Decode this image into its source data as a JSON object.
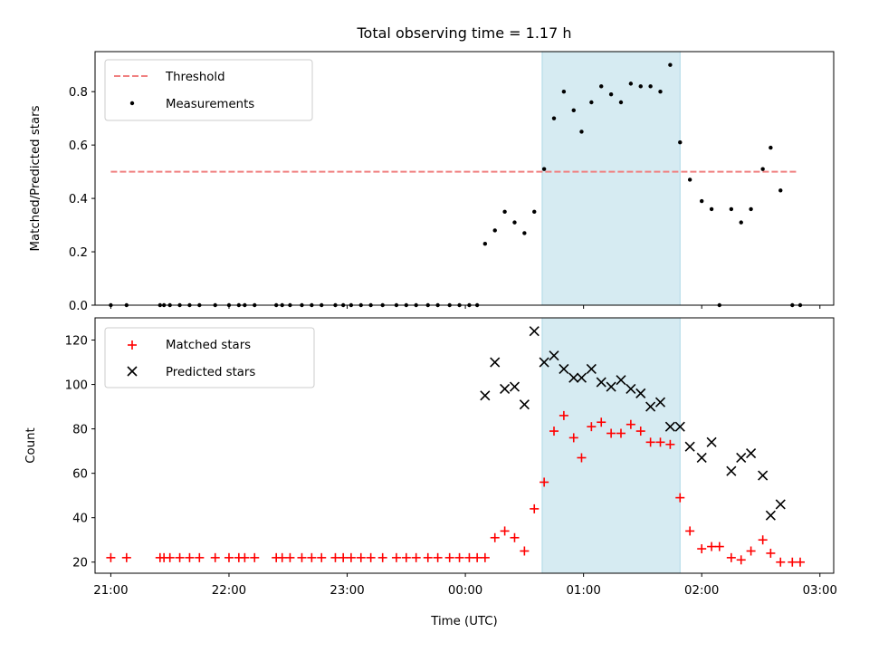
{
  "title": "Total observing time = 1.17 h",
  "shaded_region_color": "#add8e6",
  "chart_data": [
    {
      "type": "scatter",
      "panel": "top",
      "ylabel": "Matched/Predicted stars",
      "ylim": [
        0,
        0.95
      ],
      "yticks": [
        0.0,
        0.2,
        0.4,
        0.6,
        0.8
      ],
      "ytick_labels": [
        "0.0",
        "0.2",
        "0.4",
        "0.6",
        "0.8"
      ],
      "xlim": [
        "20:52",
        "03:07"
      ],
      "legend_position": "upper-left",
      "shaded_region": [
        "00:39",
        "01:49"
      ],
      "threshold": {
        "name": "Threshold",
        "value": 0.5,
        "x_range": [
          "21:00",
          "02:48"
        ],
        "color": "#f08080",
        "style": "dashed"
      },
      "series": [
        {
          "name": "Measurements",
          "marker": "dot",
          "color": "#000000",
          "points": [
            [
              "21:00",
              0.0
            ],
            [
              "21:08",
              0.0
            ],
            [
              "21:25",
              0.0
            ],
            [
              "21:27",
              0.0
            ],
            [
              "21:30",
              0.0
            ],
            [
              "21:35",
              0.0
            ],
            [
              "21:40",
              0.0
            ],
            [
              "21:45",
              0.0
            ],
            [
              "21:53",
              0.0
            ],
            [
              "22:00",
              0.0
            ],
            [
              "22:05",
              0.0
            ],
            [
              "22:08",
              0.0
            ],
            [
              "22:13",
              0.0
            ],
            [
              "22:24",
              0.0
            ],
            [
              "22:27",
              0.0
            ],
            [
              "22:31",
              0.0
            ],
            [
              "22:37",
              0.0
            ],
            [
              "22:42",
              0.0
            ],
            [
              "22:47",
              0.0
            ],
            [
              "22:54",
              0.0
            ],
            [
              "22:58",
              0.0
            ],
            [
              "23:02",
              0.0
            ],
            [
              "23:07",
              0.0
            ],
            [
              "23:12",
              0.0
            ],
            [
              "23:18",
              0.0
            ],
            [
              "23:25",
              0.0
            ],
            [
              "23:30",
              0.0
            ],
            [
              "23:35",
              0.0
            ],
            [
              "23:41",
              0.0
            ],
            [
              "23:46",
              0.0
            ],
            [
              "23:52",
              0.0
            ],
            [
              "23:57",
              0.0
            ],
            [
              "00:02",
              0.0
            ],
            [
              "00:06",
              0.0
            ],
            [
              "00:10",
              0.23
            ],
            [
              "00:15",
              0.28
            ],
            [
              "00:20",
              0.35
            ],
            [
              "00:25",
              0.31
            ],
            [
              "00:30",
              0.27
            ],
            [
              "00:35",
              0.35
            ],
            [
              "00:40",
              0.51
            ],
            [
              "00:45",
              0.7
            ],
            [
              "00:50",
              0.8
            ],
            [
              "00:55",
              0.73
            ],
            [
              "00:59",
              0.65
            ],
            [
              "01:04",
              0.76
            ],
            [
              "01:09",
              0.82
            ],
            [
              "01:14",
              0.79
            ],
            [
              "01:19",
              0.76
            ],
            [
              "01:24",
              0.83
            ],
            [
              "01:29",
              0.82
            ],
            [
              "01:34",
              0.82
            ],
            [
              "01:39",
              0.8
            ],
            [
              "01:44",
              0.9
            ],
            [
              "01:49",
              0.61
            ],
            [
              "01:54",
              0.47
            ],
            [
              "02:00",
              0.39
            ],
            [
              "02:05",
              0.36
            ],
            [
              "02:09",
              0.0
            ],
            [
              "02:15",
              0.36
            ],
            [
              "02:20",
              0.31
            ],
            [
              "02:25",
              0.36
            ],
            [
              "02:31",
              0.51
            ],
            [
              "02:35",
              0.59
            ],
            [
              "02:40",
              0.43
            ],
            [
              "02:46",
              0.0
            ],
            [
              "02:50",
              0.0
            ]
          ]
        }
      ]
    },
    {
      "type": "scatter",
      "panel": "bottom",
      "xlabel": "Time (UTC)",
      "ylabel": "Count",
      "ylim": [
        15,
        130
      ],
      "yticks": [
        20,
        40,
        60,
        80,
        100,
        120
      ],
      "ytick_labels": [
        "20",
        "40",
        "60",
        "80",
        "100",
        "120"
      ],
      "xlim": [
        "20:52",
        "03:07"
      ],
      "xticks": [
        "21:00",
        "22:00",
        "23:00",
        "00:00",
        "01:00",
        "02:00",
        "03:00"
      ],
      "legend_position": "upper-left",
      "shaded_region": [
        "00:39",
        "01:49"
      ],
      "series": [
        {
          "name": "Matched stars",
          "marker": "plus",
          "color": "#ff0000",
          "points": [
            [
              "21:00",
              22
            ],
            [
              "21:08",
              22
            ],
            [
              "21:25",
              22
            ],
            [
              "21:27",
              22
            ],
            [
              "21:30",
              22
            ],
            [
              "21:35",
              22
            ],
            [
              "21:40",
              22
            ],
            [
              "21:45",
              22
            ],
            [
              "21:53",
              22
            ],
            [
              "22:00",
              22
            ],
            [
              "22:05",
              22
            ],
            [
              "22:08",
              22
            ],
            [
              "22:13",
              22
            ],
            [
              "22:24",
              22
            ],
            [
              "22:27",
              22
            ],
            [
              "22:31",
              22
            ],
            [
              "22:37",
              22
            ],
            [
              "22:42",
              22
            ],
            [
              "22:47",
              22
            ],
            [
              "22:54",
              22
            ],
            [
              "22:58",
              22
            ],
            [
              "23:02",
              22
            ],
            [
              "23:07",
              22
            ],
            [
              "23:12",
              22
            ],
            [
              "23:18",
              22
            ],
            [
              "23:25",
              22
            ],
            [
              "23:30",
              22
            ],
            [
              "23:35",
              22
            ],
            [
              "23:41",
              22
            ],
            [
              "23:46",
              22
            ],
            [
              "23:52",
              22
            ],
            [
              "23:57",
              22
            ],
            [
              "00:02",
              22
            ],
            [
              "00:06",
              22
            ],
            [
              "00:10",
              22
            ],
            [
              "00:15",
              31
            ],
            [
              "00:20",
              34
            ],
            [
              "00:25",
              31
            ],
            [
              "00:30",
              25
            ],
            [
              "00:35",
              44
            ],
            [
              "00:40",
              56
            ],
            [
              "00:45",
              79
            ],
            [
              "00:50",
              86
            ],
            [
              "00:55",
              76
            ],
            [
              "00:59",
              67
            ],
            [
              "01:04",
              81
            ],
            [
              "01:09",
              83
            ],
            [
              "01:14",
              78
            ],
            [
              "01:19",
              78
            ],
            [
              "01:24",
              82
            ],
            [
              "01:29",
              79
            ],
            [
              "01:34",
              74
            ],
            [
              "01:39",
              74
            ],
            [
              "01:44",
              73
            ],
            [
              "01:49",
              49
            ],
            [
              "01:54",
              34
            ],
            [
              "02:00",
              26
            ],
            [
              "02:05",
              27
            ],
            [
              "02:09",
              27
            ],
            [
              "02:15",
              22
            ],
            [
              "02:20",
              21
            ],
            [
              "02:25",
              25
            ],
            [
              "02:31",
              30
            ],
            [
              "02:35",
              24
            ],
            [
              "02:40",
              20
            ],
            [
              "02:46",
              20
            ],
            [
              "02:50",
              20
            ]
          ]
        },
        {
          "name": "Predicted stars",
          "marker": "x",
          "color": "#000000",
          "points": [
            [
              "00:10",
              95
            ],
            [
              "00:15",
              110
            ],
            [
              "00:20",
              98
            ],
            [
              "00:25",
              99
            ],
            [
              "00:30",
              91
            ],
            [
              "00:35",
              124
            ],
            [
              "00:40",
              110
            ],
            [
              "00:45",
              113
            ],
            [
              "00:50",
              107
            ],
            [
              "00:55",
              103
            ],
            [
              "00:59",
              103
            ],
            [
              "01:04",
              107
            ],
            [
              "01:09",
              101
            ],
            [
              "01:14",
              99
            ],
            [
              "01:19",
              102
            ],
            [
              "01:24",
              98
            ],
            [
              "01:29",
              96
            ],
            [
              "01:34",
              90
            ],
            [
              "01:39",
              92
            ],
            [
              "01:44",
              81
            ],
            [
              "01:49",
              81
            ],
            [
              "01:54",
              72
            ],
            [
              "02:00",
              67
            ],
            [
              "02:05",
              74
            ],
            [
              "02:15",
              61
            ],
            [
              "02:20",
              67
            ],
            [
              "02:25",
              69
            ],
            [
              "02:31",
              59
            ],
            [
              "02:35",
              41
            ],
            [
              "02:40",
              46
            ]
          ]
        }
      ]
    }
  ]
}
